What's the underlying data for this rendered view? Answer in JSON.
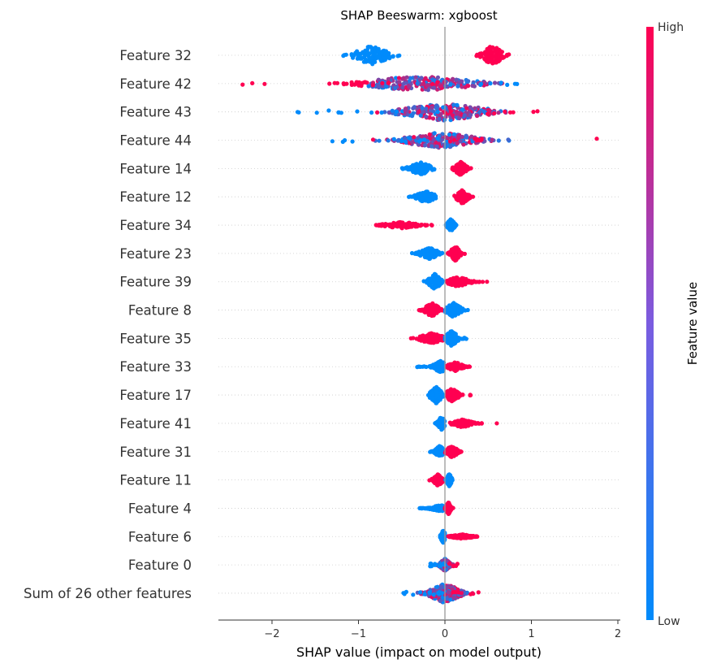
{
  "chart_data": {
    "type": "scatter",
    "subtype": "shap-beeswarm",
    "title": "SHAP Beeswarm: xgboost",
    "xlabel": "SHAP value (impact on model output)",
    "xlim": [
      -2.65,
      2.0
    ],
    "xticks": [
      -2,
      -1,
      0,
      1,
      2
    ],
    "xtick_labels": [
      "−2",
      "−1",
      "0",
      "1",
      "2"
    ],
    "grid": false,
    "colorbar": {
      "label": "Feature value",
      "high_label": "High",
      "low_label": "Low",
      "low_color": "#008bfb",
      "high_color": "#ff0051"
    },
    "features": [
      {
        "name": "Feature 32",
        "pattern": "split",
        "neg": {
          "min": -1.18,
          "max": -0.48,
          "center": -0.85,
          "spread": 0.14,
          "width": 0.9
        },
        "pos": {
          "min": 0.35,
          "max": 0.8,
          "center": 0.55,
          "spread": 0.08,
          "width": 0.95
        },
        "neg_high": false,
        "extra": []
      },
      {
        "name": "Feature 42",
        "pattern": "wide",
        "min": -2.45,
        "max": 1.1,
        "center": -0.3,
        "spread": 0.45,
        "width": 0.75,
        "neg_high": true,
        "extra": []
      },
      {
        "name": "Feature 43",
        "pattern": "wide",
        "min": -1.72,
        "max": 1.15,
        "center": 0.0,
        "spread": 0.35,
        "width": 0.85,
        "neg_high": false,
        "extra": []
      },
      {
        "name": "Feature 44",
        "pattern": "wide",
        "min": -1.32,
        "max": 1.82,
        "center": -0.05,
        "spread": 0.3,
        "width": 0.75,
        "neg_high": false,
        "extra": []
      },
      {
        "name": "Feature 14",
        "pattern": "split",
        "neg": {
          "min": -0.5,
          "max": -0.12,
          "center": -0.28,
          "spread": 0.09,
          "width": 0.6
        },
        "pos": {
          "min": 0.08,
          "max": 0.35,
          "center": 0.18,
          "spread": 0.05,
          "width": 0.65
        },
        "neg_high": false,
        "extra": []
      },
      {
        "name": "Feature 12",
        "pattern": "split",
        "neg": {
          "min": -0.45,
          "max": -0.1,
          "center": -0.22,
          "spread": 0.08,
          "width": 0.55
        },
        "pos": {
          "min": 0.1,
          "max": 0.35,
          "center": 0.2,
          "spread": 0.05,
          "width": 0.65
        },
        "neg_high": false,
        "extra": []
      },
      {
        "name": "Feature 34",
        "pattern": "split",
        "neg": {
          "min": -0.8,
          "max": -0.15,
          "center": -0.5,
          "spread": 0.15,
          "width": 0.3
        },
        "pos": {
          "min": 0.0,
          "max": 0.15,
          "center": 0.07,
          "spread": 0.03,
          "width": 0.6
        },
        "neg_high": true,
        "extra": []
      },
      {
        "name": "Feature 23",
        "pattern": "split",
        "neg": {
          "min": -0.42,
          "max": -0.02,
          "center": -0.18,
          "spread": 0.08,
          "width": 0.55
        },
        "pos": {
          "min": 0.02,
          "max": 0.25,
          "center": 0.12,
          "spread": 0.04,
          "width": 0.7
        },
        "neg_high": false,
        "extra": []
      },
      {
        "name": "Feature 39",
        "pattern": "split",
        "neg": {
          "min": -0.26,
          "max": -0.02,
          "center": -0.12,
          "spread": 0.05,
          "width": 0.75
        },
        "pos": {
          "min": 0.02,
          "max": 0.5,
          "center": 0.15,
          "spread": 0.1,
          "width": 0.45
        },
        "neg_high": false,
        "extra": []
      },
      {
        "name": "Feature 8",
        "pattern": "split",
        "neg": {
          "min": -0.3,
          "max": -0.03,
          "center": -0.15,
          "spread": 0.06,
          "width": 0.7
        },
        "pos": {
          "min": 0.0,
          "max": 0.28,
          "center": 0.1,
          "spread": 0.06,
          "width": 0.7
        },
        "neg_high": true,
        "extra": []
      },
      {
        "name": "Feature 35",
        "pattern": "split",
        "neg": {
          "min": -0.4,
          "max": -0.02,
          "center": -0.15,
          "spread": 0.1,
          "width": 0.5
        },
        "pos": {
          "min": 0.0,
          "max": 0.25,
          "center": 0.08,
          "spread": 0.05,
          "width": 0.75
        },
        "neg_high": true,
        "extra": []
      },
      {
        "name": "Feature 33",
        "pattern": "split",
        "neg": {
          "min": -0.33,
          "max": -0.01,
          "center": -0.05,
          "spread": 0.06,
          "width": 0.55
        },
        "pos": {
          "min": 0.02,
          "max": 0.3,
          "center": 0.12,
          "spread": 0.06,
          "width": 0.45
        },
        "neg_high": false,
        "extra": []
      },
      {
        "name": "Feature 17",
        "pattern": "split",
        "neg": {
          "min": -0.23,
          "max": -0.01,
          "center": -0.1,
          "spread": 0.05,
          "width": 0.8
        },
        "pos": {
          "min": 0.02,
          "max": 0.35,
          "center": 0.08,
          "spread": 0.06,
          "width": 0.6
        },
        "neg_high": false,
        "extra": []
      },
      {
        "name": "Feature 41",
        "pattern": "split",
        "neg": {
          "min": -0.12,
          "max": 0.0,
          "center": -0.04,
          "spread": 0.03,
          "width": 0.65
        },
        "pos": {
          "min": 0.05,
          "max": 0.45,
          "center": 0.2,
          "spread": 0.08,
          "width": 0.4
        },
        "neg_high": false,
        "extra": [
          0.6
        ]
      },
      {
        "name": "Feature 31",
        "pattern": "split",
        "neg": {
          "min": -0.18,
          "max": 0.0,
          "center": -0.06,
          "spread": 0.04,
          "width": 0.55
        },
        "pos": {
          "min": 0.0,
          "max": 0.22,
          "center": 0.08,
          "spread": 0.05,
          "width": 0.55
        },
        "neg_high": false,
        "extra": []
      },
      {
        "name": "Feature 11",
        "pattern": "split",
        "neg": {
          "min": -0.18,
          "max": -0.02,
          "center": -0.08,
          "spread": 0.04,
          "width": 0.55
        },
        "pos": {
          "min": 0.0,
          "max": 0.1,
          "center": 0.05,
          "spread": 0.02,
          "width": 0.6
        },
        "neg_high": true,
        "extra": []
      },
      {
        "name": "Feature 4",
        "pattern": "split",
        "neg": {
          "min": -0.32,
          "max": 0.0,
          "center": -0.05,
          "spread": 0.08,
          "width": 0.3
        },
        "pos": {
          "min": 0.0,
          "max": 0.1,
          "center": 0.04,
          "spread": 0.02,
          "width": 0.6
        },
        "neg_high": false,
        "extra": []
      },
      {
        "name": "Feature 6",
        "pattern": "split",
        "neg": {
          "min": -0.06,
          "max": 0.0,
          "center": -0.02,
          "spread": 0.02,
          "width": 0.6
        },
        "pos": {
          "min": 0.02,
          "max": 0.38,
          "center": 0.2,
          "spread": 0.09,
          "width": 0.2
        },
        "neg_high": false,
        "extra": []
      },
      {
        "name": "Feature 0",
        "pattern": "wide",
        "min": -0.18,
        "max": 0.15,
        "center": 0.0,
        "spread": 0.04,
        "width": 0.6,
        "neg_high": false,
        "extra": []
      },
      {
        "name": "Sum of 26 other features",
        "pattern": "wide",
        "min": -0.55,
        "max": 0.4,
        "center": 0.0,
        "spread": 0.12,
        "width": 0.95,
        "neg_high": false,
        "extra": []
      }
    ]
  }
}
